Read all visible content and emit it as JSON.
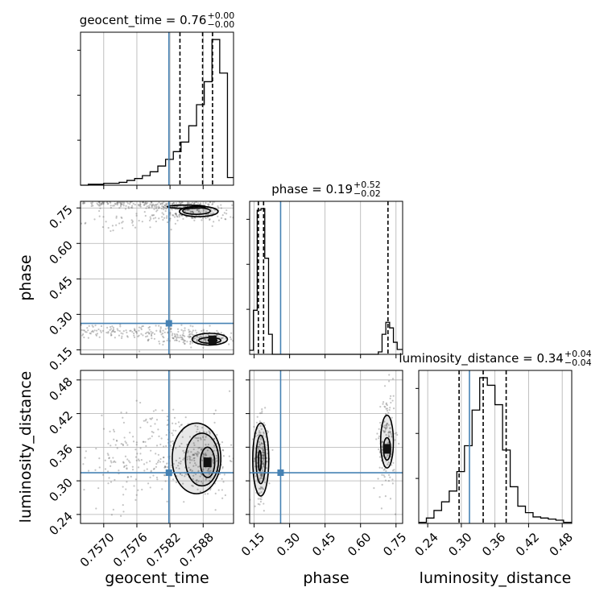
{
  "chart_data": {
    "type": "scatter",
    "kind": "corner plot",
    "parameters": [
      "geocent_time",
      "phase",
      "luminosity_distance"
    ],
    "axis_labels": {
      "geocent_time": "geocent_time",
      "phase": "phase",
      "luminosity_distance": "luminosity_distance"
    },
    "ranges": {
      "geocent_time": [
        0.75658,
        0.75935
      ],
      "phase": [
        0.131,
        0.778
      ],
      "luminosity_distance": [
        0.224,
        0.497
      ]
    },
    "ticks": {
      "geocent_time": [
        {
          "v": 0.757,
          "label": "0.7570"
        },
        {
          "v": 0.7576,
          "label": "0.7576"
        },
        {
          "v": 0.7582,
          "label": "0.7582"
        },
        {
          "v": 0.7588,
          "label": "0.7588"
        }
      ],
      "phase": [
        {
          "v": 0.15,
          "label": "0.15"
        },
        {
          "v": 0.3,
          "label": "0.30"
        },
        {
          "v": 0.45,
          "label": "0.45"
        },
        {
          "v": 0.6,
          "label": "0.60"
        },
        {
          "v": 0.75,
          "label": "0.75"
        }
      ],
      "luminosity_distance": [
        {
          "v": 0.24,
          "label": "0.24"
        },
        {
          "v": 0.3,
          "label": "0.30"
        },
        {
          "v": 0.36,
          "label": "0.36"
        },
        {
          "v": 0.42,
          "label": "0.42"
        },
        {
          "v": 0.48,
          "label": "0.48"
        }
      ]
    },
    "truths": {
      "geocent_time": 0.75818,
      "phase": 0.262,
      "luminosity_distance": 0.3145
    },
    "titles": [
      {
        "param": "geocent_time",
        "prefix": "geocent_time = ",
        "median": "0.76",
        "plus": "+0.00",
        "minus": "−0.00"
      },
      {
        "param": "phase",
        "prefix": "phase = ",
        "median": "0.19",
        "plus": "+0.52",
        "minus": "−0.02"
      },
      {
        "param": "luminosity_distance",
        "prefix": "luminosity_distance = ",
        "median": "0.34",
        "plus": "+0.04",
        "minus": "−0.04"
      }
    ],
    "quantiles": {
      "geocent_time": [
        0.75838,
        0.75879,
        0.75897
      ],
      "phase": [
        0.168,
        0.19,
        0.716
      ],
      "luminosity_distance": [
        0.296,
        0.339,
        0.38
      ]
    },
    "histograms": {
      "geocent_time": {
        "edges": [
          0.75658,
          0.75672,
          0.75686,
          0.757,
          0.75714,
          0.75728,
          0.75742,
          0.75756,
          0.7577,
          0.75784,
          0.75798,
          0.75812,
          0.75826,
          0.7584,
          0.75854,
          0.75868,
          0.75882,
          0.75896,
          0.7591,
          0.75924,
          0.75935
        ],
        "counts": [
          0,
          1,
          1,
          2,
          2,
          3,
          5,
          7,
          10,
          14,
          20,
          27,
          35,
          45,
          62,
          84,
          108,
          152,
          117,
          8
        ]
      },
      "phase": {
        "edges": [
          0.131,
          0.147,
          0.163,
          0.179,
          0.195,
          0.211,
          0.227,
          0.243,
          0.259,
          0.275,
          0.291,
          0.307,
          0.323,
          0.339,
          0.355,
          0.371,
          0.387,
          0.403,
          0.419,
          0.435,
          0.451,
          0.467,
          0.483,
          0.499,
          0.515,
          0.531,
          0.547,
          0.563,
          0.579,
          0.595,
          0.611,
          0.627,
          0.643,
          0.659,
          0.675,
          0.691,
          0.707,
          0.723,
          0.739,
          0.755,
          0.778
        ],
        "counts": [
          5,
          55,
          180,
          182,
          120,
          25,
          0,
          0,
          0,
          0,
          0,
          0,
          0,
          0,
          0,
          0,
          0,
          0,
          0,
          0,
          0,
          0,
          0,
          0,
          0,
          0,
          0,
          0,
          0,
          0,
          0,
          0,
          0,
          0,
          3,
          25,
          40,
          33,
          15,
          6
        ]
      },
      "luminosity_distance": {
        "edges": [
          0.224,
          0.2376,
          0.2512,
          0.2648,
          0.2784,
          0.292,
          0.3056,
          0.3192,
          0.3328,
          0.3464,
          0.36,
          0.3736,
          0.3872,
          0.4008,
          0.4144,
          0.428,
          0.4416,
          0.4552,
          0.4688,
          0.4824,
          0.497
        ],
        "counts": [
          1,
          5,
          12,
          20,
          30,
          48,
          72,
          105,
          135,
          128,
          110,
          68,
          34,
          16,
          10,
          6,
          5,
          4,
          3,
          1
        ]
      }
    },
    "pairs": [
      {
        "x": "geocent_time",
        "y": "phase",
        "samples": [
          {
            "n": 130,
            "cx": 0.7584,
            "cy": 0.76,
            "sx": 0.0004,
            "sy": 0.011
          },
          {
            "n": 90,
            "cx": 0.7577,
            "cy": 0.765,
            "sx": 0.0005,
            "sy": 0.012
          },
          {
            "n": 60,
            "cx": 0.757,
            "cy": 0.775,
            "sx": 0.0003,
            "sy": 0.008
          },
          {
            "n": 140,
            "cx": 0.7586,
            "cy": 0.725,
            "sx": 0.0004,
            "sy": 0.018
          },
          {
            "n": 40,
            "cx": 0.7575,
            "cy": 0.69,
            "sx": 0.0004,
            "sy": 0.015
          },
          {
            "n": 150,
            "cx": 0.7588,
            "cy": 0.2,
            "sx": 0.00035,
            "sy": 0.015
          },
          {
            "n": 110,
            "cx": 0.7579,
            "cy": 0.22,
            "sx": 0.0005,
            "sy": 0.02
          },
          {
            "n": 60,
            "cx": 0.757,
            "cy": 0.23,
            "sx": 0.0004,
            "sy": 0.012
          }
        ],
        "contours": [
          {
            "cx": 0.75872,
            "cy": 0.735,
            "rx": 0.00035,
            "ry": 0.022
          },
          {
            "cx": 0.75868,
            "cy": 0.737,
            "rx": 0.00025,
            "ry": 0.014
          },
          {
            "cx": 0.7585,
            "cy": 0.755,
            "rx": 0.00035,
            "ry": 0.007
          },
          {
            "cx": 0.75892,
            "cy": 0.195,
            "rx": 0.00032,
            "ry": 0.025
          },
          {
            "cx": 0.75892,
            "cy": 0.19,
            "rx": 0.0002,
            "ry": 0.012
          },
          {
            "cx": 0.75897,
            "cy": 0.19,
            "rx": 8e-05,
            "ry": 0.006
          }
        ]
      },
      {
        "x": "geocent_time",
        "y": "luminosity_distance",
        "samples": [
          {
            "n": 260,
            "cx": 0.7587,
            "cy": 0.34,
            "sx": 0.00035,
            "sy": 0.035
          },
          {
            "n": 120,
            "cx": 0.7579,
            "cy": 0.36,
            "sx": 0.0005,
            "sy": 0.04
          },
          {
            "n": 70,
            "cx": 0.7572,
            "cy": 0.33,
            "sx": 0.0004,
            "sy": 0.04
          }
        ],
        "contours": [
          {
            "cx": 0.75868,
            "cy": 0.34,
            "rx": 0.00044,
            "ry": 0.063
          },
          {
            "cx": 0.75878,
            "cy": 0.338,
            "rx": 0.0003,
            "ry": 0.047
          },
          {
            "cx": 0.75888,
            "cy": 0.333,
            "rx": 0.00013,
            "ry": 0.027
          }
        ]
      },
      {
        "x": "phase",
        "y": "luminosity_distance",
        "samples": [
          {
            "n": 230,
            "cx": 0.18,
            "cy": 0.34,
            "sx": 0.015,
            "sy": 0.035
          },
          {
            "n": 170,
            "cx": 0.71,
            "cy": 0.37,
            "sx": 0.018,
            "sy": 0.045
          }
        ],
        "contours": [
          {
            "cx": 0.178,
            "cy": 0.338,
            "rx": 0.034,
            "ry": 0.065
          },
          {
            "cx": 0.178,
            "cy": 0.338,
            "rx": 0.02,
            "ry": 0.043
          },
          {
            "cx": 0.174,
            "cy": 0.336,
            "rx": 0.006,
            "ry": 0.018
          },
          {
            "cx": 0.712,
            "cy": 0.37,
            "rx": 0.027,
            "ry": 0.047
          },
          {
            "cx": 0.712,
            "cy": 0.357,
            "rx": 0.015,
            "ry": 0.02
          }
        ]
      }
    ],
    "truth_color": "#4682b4",
    "grid": true
  }
}
